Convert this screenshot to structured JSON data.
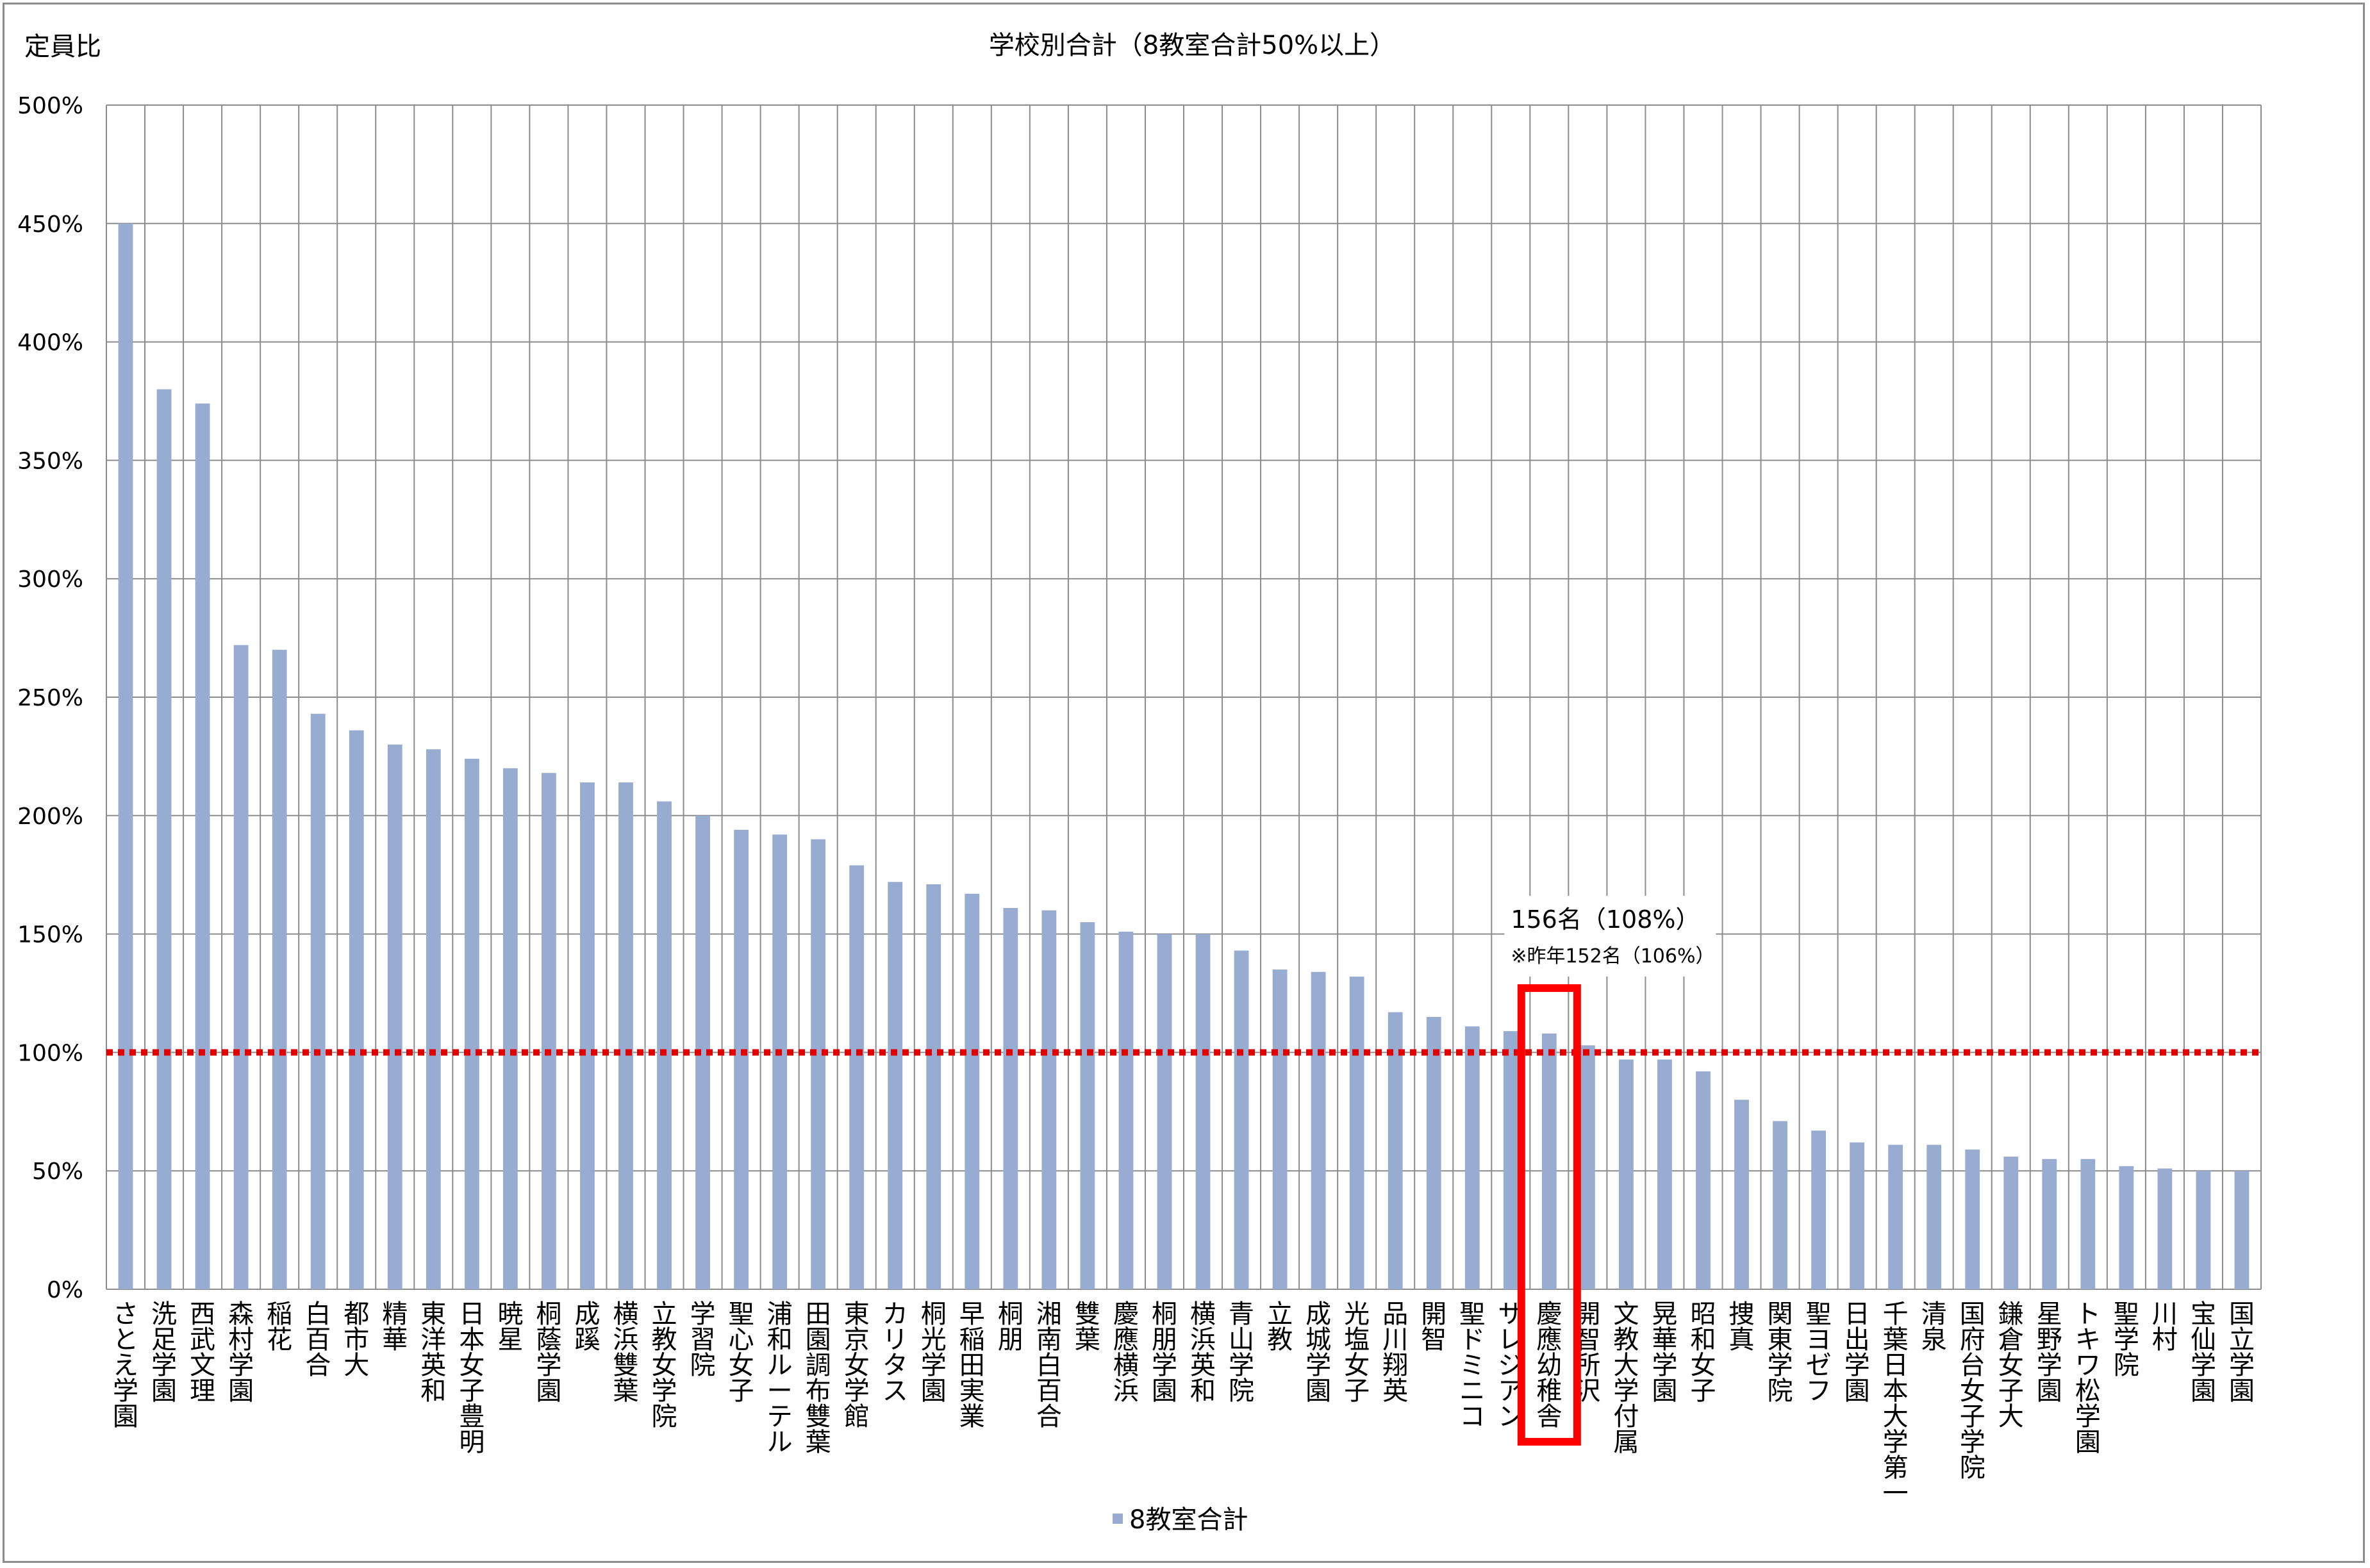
{
  "chart_data": {
    "type": "bar",
    "title": "学校別合計（8教室合計50%以上）",
    "ylabel": "定員比",
    "xlabel": "",
    "ylim": [
      0,
      500
    ],
    "yticks": [
      "0%",
      "50%",
      "100%",
      "150%",
      "200%",
      "250%",
      "300%",
      "350%",
      "400%",
      "450%",
      "500%"
    ],
    "grid": true,
    "legend_position": "bottom",
    "reference_line": {
      "value": 100,
      "style": "dotted",
      "color": "#e00000"
    },
    "categories": [
      "さとえ学園",
      "洗足学園",
      "西武文理",
      "森村学園",
      "稲花",
      "白百合",
      "都市大",
      "精華",
      "東洋英和",
      "日本女子豊明",
      "暁星",
      "桐蔭学園",
      "成蹊",
      "横浜雙葉",
      "立教女学院",
      "学習院",
      "聖心女子",
      "浦和ルーテル",
      "田園調布雙葉",
      "東京女学館",
      "カリタス",
      "桐光学園",
      "早稲田実業",
      "桐朋",
      "湘南白百合",
      "雙葉",
      "慶應横浜",
      "桐朋学園",
      "横浜英和",
      "青山学院",
      "立教",
      "成城学園",
      "光塩女子",
      "品川翔英",
      "開智",
      "聖ドミニコ",
      "サレジアン",
      "慶應幼稚舎",
      "開智所沢",
      "文教大学付属",
      "晃華学園",
      "昭和女子",
      "捜真",
      "関東学院",
      "聖ヨゼフ",
      "日出学園",
      "千葉日本大学第一",
      "清泉",
      "国府台女子学院",
      "鎌倉女子大",
      "星野学園",
      "トキワ松学園",
      "聖学院",
      "川村",
      "宝仙学園",
      "国立学園"
    ],
    "series": [
      {
        "name": "8教室合計",
        "color": "#98abd0",
        "values": [
          450,
          380,
          374,
          272,
          270,
          243,
          236,
          230,
          228,
          224,
          220,
          218,
          214,
          214,
          206,
          200,
          194,
          192,
          190,
          179,
          172,
          171,
          167,
          161,
          160,
          155,
          151,
          150,
          150,
          143,
          135,
          134,
          132,
          117,
          115,
          111,
          109,
          108,
          103,
          97,
          97,
          92,
          80,
          71,
          67,
          62,
          61,
          61,
          59,
          56,
          55,
          55,
          52,
          51,
          50,
          50
        ]
      }
    ],
    "highlight": {
      "category": "慶應幼稚舎",
      "color": "#ff0000",
      "label_main": "156名（108%）",
      "label_sub": "※昨年152名（106%）"
    }
  }
}
